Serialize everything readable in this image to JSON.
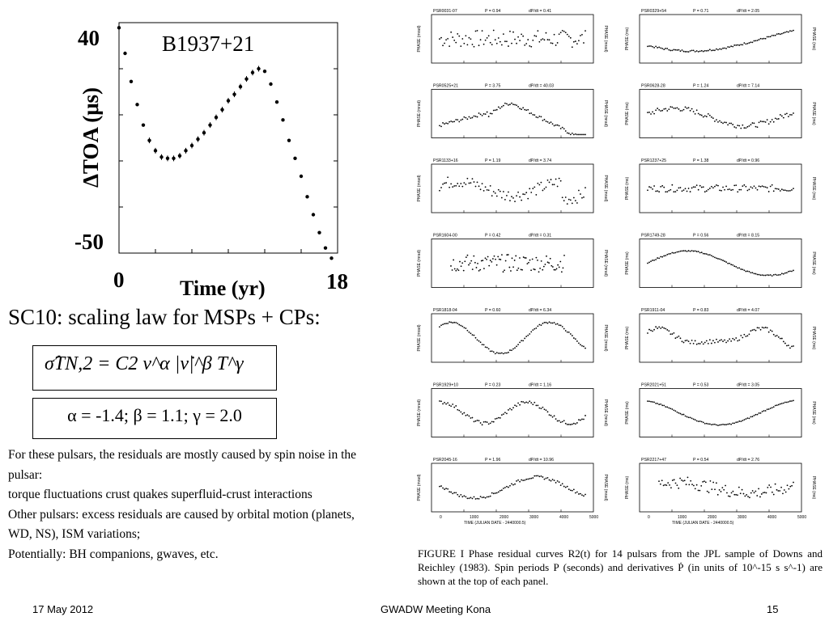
{
  "main_plot": {
    "title": "B1937+21",
    "ylabel": "ΔTOA (μs)",
    "xlabel": "Time (yr)",
    "ytick_top": "40",
    "ytick_bottom": "-50",
    "xtick_left": "0",
    "xtick_right": "18"
  },
  "slide": {
    "heading": "SC10: scaling law for MSPs + CPs:",
    "formula": "σ̂TN,2 = C2 ν^α |ν̇|^β T^γ",
    "params": "α = -1.4; β = 1.1; γ = 2.0",
    "body_lines": [
      "For these pulsars, the residuals are mostly caused by spin noise in the",
      "pulsar:",
      "torque fluctuations crust quakes superfluid-crust interactions",
      "Other pulsars: excess residuals are caused by orbital motion (planets,",
      "WD, NS), ISM variations;",
      "Potentially: BH companions, gwaves, etc."
    ]
  },
  "figure": {
    "caption": "FIGURE I    Phase residual curves R2(t) for 14 pulsars from the JPL sample of Downs and Reichley (1983). Spin periods P (seconds) and derivatives Ṗ (in units of 10^-15 s s^-1) are shown at the top of each panel.",
    "axis_phase": "PHASE",
    "xlabel": "TIME (JULIAN DATE - 2440000.5)",
    "xticks": [
      "0",
      "1000",
      "2000",
      "3000",
      "4000",
      "5000"
    ],
    "panels": [
      {
        "name": "PSR0031-07",
        "P": "P = 0.94",
        "Pdot": "dP/dt = 0.41",
        "unit": "mrad"
      },
      {
        "name": "PSR0329+54",
        "P": "P = 0.71",
        "Pdot": "dP/dt = 2.05",
        "unit": "ms"
      },
      {
        "name": "PSR0525+21",
        "P": "P = 3.75",
        "Pdot": "dP/dt = 40.03",
        "unit": "mrad"
      },
      {
        "name": "PSR0628-28",
        "P": "P = 1.24",
        "Pdot": "dP/dt = 7.14",
        "unit": "ms"
      },
      {
        "name": "PSR1133+16",
        "P": "P = 1.19",
        "Pdot": "dP/dt = 3.74",
        "unit": "mrad"
      },
      {
        "name": "PSR1237+25",
        "P": "P = 1.38",
        "Pdot": "dP/dt = 0.96",
        "unit": "ms"
      },
      {
        "name": "PSR1604-00",
        "P": "P = 0.42",
        "Pdot": "dP/dt = 0.31",
        "unit": "mrad"
      },
      {
        "name": "PSR1749-28",
        "P": "P = 0.56",
        "Pdot": "dP/dt = 8.15",
        "unit": "ms"
      },
      {
        "name": "PSR1818-04",
        "P": "P = 0.60",
        "Pdot": "dP/dt = 6.34",
        "unit": "mrad"
      },
      {
        "name": "PSR1911-04",
        "P": "P = 0.83",
        "Pdot": "dP/dt = 4.07",
        "unit": "ms"
      },
      {
        "name": "PSR1929+10",
        "P": "P = 0.23",
        "Pdot": "dP/dt = 1.16",
        "unit": "mrad"
      },
      {
        "name": "PSR2021+51",
        "P": "P = 0.53",
        "Pdot": "dP/dt = 3.05",
        "unit": "ms"
      },
      {
        "name": "PSR2045-16",
        "P": "P = 1.96",
        "Pdot": "dP/dt = 10.96",
        "unit": "mrad"
      },
      {
        "name": "PSR2217+47",
        "P": "P = 0.54",
        "Pdot": "dP/dt = 2.76",
        "unit": "ms"
      }
    ]
  },
  "footer": {
    "date": "17 May 2012",
    "event": "GWADW Meeting Kona",
    "page": "15"
  },
  "chart_data": {
    "type": "scatter",
    "title": "B1937+21",
    "xlabel": "Time (yr)",
    "ylabel": "ΔTOA (μs)",
    "xlim": [
      0,
      18
    ],
    "ylim": [
      -50,
      40
    ],
    "series": [
      {
        "x": [
          0,
          0.5,
          1,
          1.5,
          2,
          2.5,
          3,
          3.5,
          4,
          4.5,
          5,
          5.5,
          6,
          6.5,
          7,
          7.5,
          8,
          8.5,
          9,
          9.5,
          10,
          10.5,
          11,
          11.5,
          12,
          12.5,
          13,
          13.5,
          14,
          14.5,
          15,
          15.5,
          16,
          16.5,
          17,
          17.5
        ],
        "y": [
          38,
          28,
          17,
          8,
          0,
          -6,
          -10,
          -12.5,
          -13,
          -13,
          -12,
          -10,
          -8,
          -5.5,
          -3,
          0,
          3,
          6,
          9.5,
          12,
          15,
          18,
          20.5,
          22,
          21,
          16,
          9,
          2,
          -6,
          -13,
          -20,
          -28,
          -35,
          -42,
          -48,
          -52
        ]
      }
    ]
  }
}
